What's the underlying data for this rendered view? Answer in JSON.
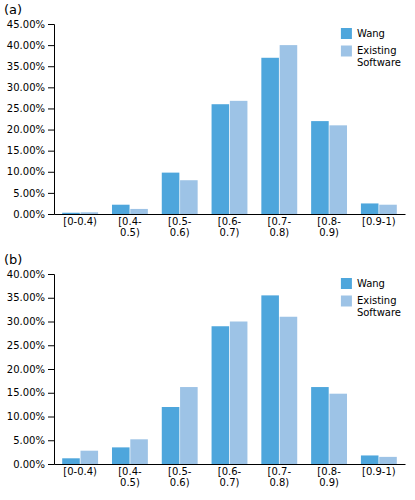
{
  "chart_data": [
    {
      "type": "bar",
      "title": "(a)",
      "categories": [
        "[0-0.4)",
        "[0.4-\n0.5)",
        "[0.5-\n0.6)",
        "[0.6-\n0.7)",
        "[0.7-\n0.8)",
        "[0.8-\n0.9)",
        "[0.9-1)"
      ],
      "series": [
        {
          "name": "Wang",
          "color": "#4EA6DC",
          "values": [
            0.3,
            2.2,
            9.8,
            26.0,
            37.0,
            22.0,
            2.5
          ]
        },
        {
          "name": "Existing\nSoftware",
          "color": "#9DC3E6",
          "values": [
            0.4,
            1.2,
            8.0,
            26.8,
            40.0,
            21.0,
            2.2
          ]
        }
      ],
      "ylim": [
        0,
        45
      ],
      "yticks": [
        {
          "value": 0,
          "label": "0.00%"
        },
        {
          "value": 5,
          "label": "5.00%"
        },
        {
          "value": 10,
          "label": "10.00%"
        },
        {
          "value": 15,
          "label": "15.00%"
        },
        {
          "value": 20,
          "label": "20.00%"
        },
        {
          "value": 25,
          "label": "25.00%"
        },
        {
          "value": 30,
          "label": "30.00%"
        },
        {
          "value": 35,
          "label": "35.00%"
        },
        {
          "value": 40,
          "label": "40.00%"
        },
        {
          "value": 45,
          "label": "45.00%"
        }
      ],
      "grid": false,
      "legend": "upper right"
    },
    {
      "type": "bar",
      "title": "(b)",
      "categories": [
        "[0-0.4)",
        "[0.4-\n0.5)",
        "[0.5-\n0.6)",
        "[0.6-\n0.7)",
        "[0.7-\n0.8)",
        "[0.8-\n0.9)",
        "[0.9-1)"
      ],
      "series": [
        {
          "name": "Wang",
          "color": "#4EA6DC",
          "values": [
            1.2,
            3.5,
            12.0,
            29.0,
            35.5,
            16.2,
            1.8
          ]
        },
        {
          "name": "Existing\nSoftware",
          "color": "#9DC3E6",
          "values": [
            2.8,
            5.2,
            16.2,
            30.0,
            31.0,
            14.8,
            1.5
          ]
        }
      ],
      "ylim": [
        0,
        40
      ],
      "yticks": [
        {
          "value": 0,
          "label": "0.00%"
        },
        {
          "value": 5,
          "label": "5.00%"
        },
        {
          "value": 10,
          "label": "10.00%"
        },
        {
          "value": 15,
          "label": "15.00%"
        },
        {
          "value": 20,
          "label": "20.00%"
        },
        {
          "value": 25,
          "label": "25.00%"
        },
        {
          "value": 30,
          "label": "30.00%"
        },
        {
          "value": 35,
          "label": "35.00%"
        },
        {
          "value": 40,
          "label": "40.00%"
        }
      ],
      "grid": false,
      "legend": "upper right"
    }
  ]
}
